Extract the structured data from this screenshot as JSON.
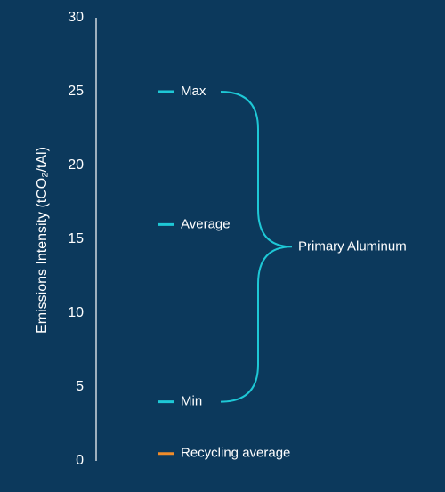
{
  "chart_data": {
    "type": "marker",
    "y_label": "Emissions Intensity (tCO₂/tAl)",
    "ylim": [
      0,
      30
    ],
    "yticks": [
      0,
      5,
      10,
      15,
      20,
      25,
      30
    ],
    "series": [
      {
        "name": "Primary Aluminum",
        "color": "#1ec8d6",
        "labels": [
          "Max",
          "Average",
          "Min"
        ],
        "values": [
          25,
          16,
          4
        ]
      },
      {
        "color": "#f08c2a",
        "labels": [
          "Recycling average"
        ],
        "values": [
          0.5
        ]
      }
    ]
  }
}
